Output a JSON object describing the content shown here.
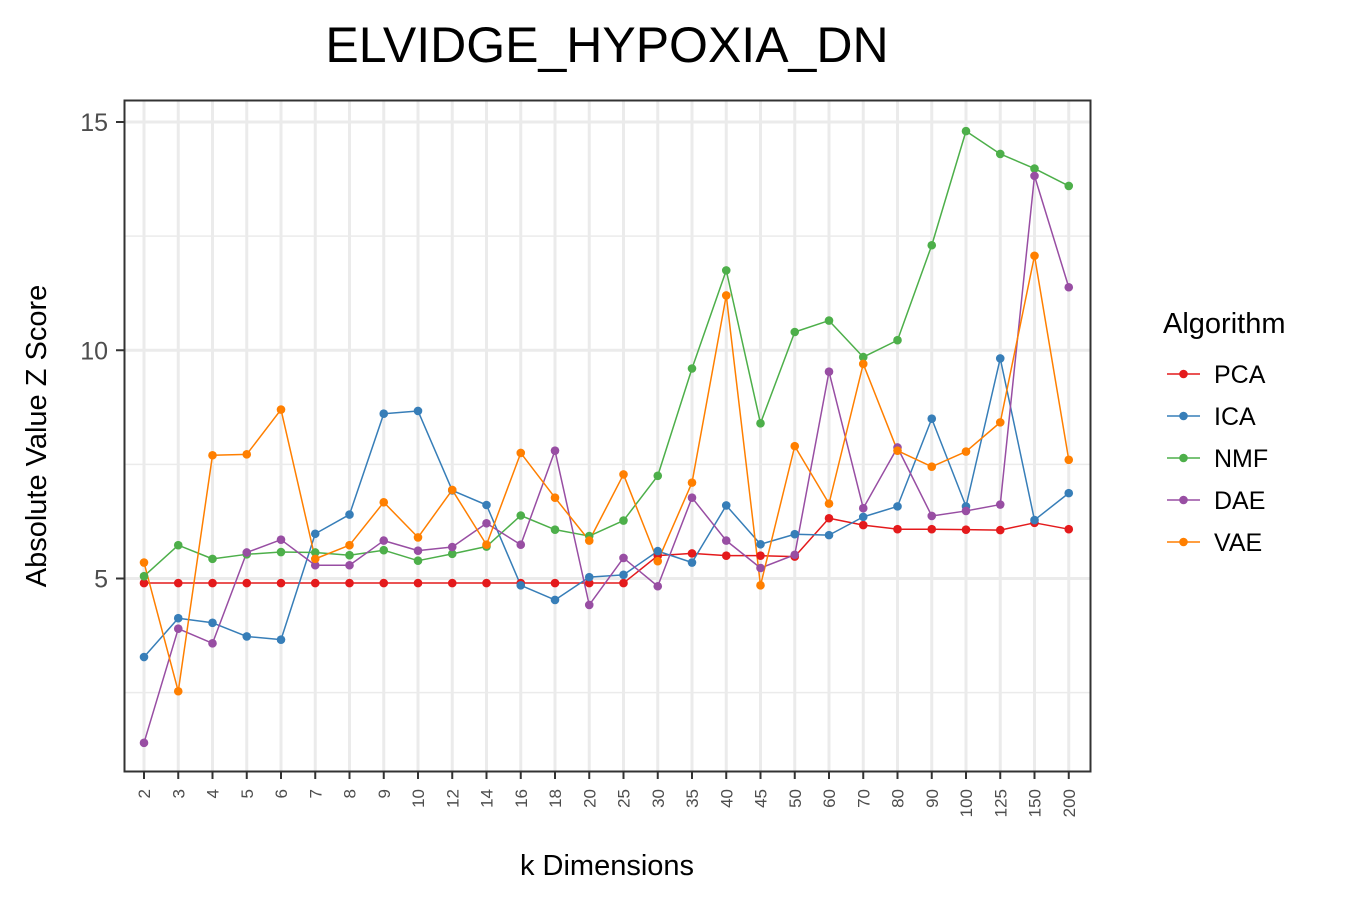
{
  "chart_data": {
    "type": "line",
    "title": "ELVIDGE_HYPOXIA_DN",
    "xlabel": "k Dimensions",
    "ylabel": "Absolute Value Z Score",
    "categories": [
      "2",
      "3",
      "4",
      "5",
      "6",
      "7",
      "8",
      "9",
      "10",
      "12",
      "14",
      "16",
      "18",
      "20",
      "25",
      "30",
      "35",
      "40",
      "45",
      "50",
      "60",
      "70",
      "80",
      "90",
      "100",
      "125",
      "150",
      "200"
    ],
    "y_ticks": [
      5,
      10,
      15
    ],
    "ylim": [
      1.1,
      15.5
    ],
    "grid": true,
    "legend_title": "Algorithm",
    "legend_position": "right",
    "series": [
      {
        "name": "PCA",
        "color": "#e41a1c",
        "values": [
          4.9,
          4.9,
          4.9,
          4.9,
          4.9,
          4.9,
          4.9,
          4.9,
          4.9,
          4.9,
          4.9,
          4.9,
          4.9,
          4.9,
          4.9,
          5.5,
          5.55,
          5.5,
          5.5,
          5.48,
          6.32,
          6.17,
          6.08,
          6.08,
          6.07,
          6.06,
          6.22,
          6.08
        ]
      },
      {
        "name": "ICA",
        "color": "#377eb8",
        "values": [
          3.28,
          4.13,
          4.03,
          3.73,
          3.66,
          5.98,
          6.4,
          8.61,
          8.67,
          6.93,
          6.61,
          4.85,
          4.53,
          5.03,
          5.08,
          5.6,
          5.35,
          6.6,
          5.75,
          5.97,
          5.95,
          6.35,
          6.58,
          8.5,
          6.58,
          9.82,
          6.28,
          6.87
        ]
      },
      {
        "name": "NMF",
        "color": "#4daf4a",
        "values": [
          5.05,
          5.73,
          5.43,
          5.53,
          5.58,
          5.57,
          5.51,
          5.62,
          5.39,
          5.54,
          5.7,
          6.38,
          6.07,
          5.93,
          6.27,
          7.25,
          9.6,
          11.75,
          8.4,
          10.4,
          10.65,
          9.85,
          10.22,
          12.3,
          14.8,
          14.3,
          13.98,
          13.6
        ]
      },
      {
        "name": "DAE",
        "color": "#984ea3",
        "values": [
          1.4,
          3.9,
          3.58,
          5.57,
          5.85,
          5.29,
          5.29,
          5.83,
          5.61,
          5.69,
          6.21,
          5.74,
          7.8,
          4.42,
          5.45,
          4.83,
          6.77,
          5.83,
          5.23,
          5.52,
          9.53,
          6.54,
          7.87,
          6.37,
          6.48,
          6.62,
          13.82,
          11.38
        ]
      },
      {
        "name": "VAE",
        "color": "#ff7f00",
        "values": [
          5.35,
          2.53,
          7.7,
          7.72,
          8.7,
          5.43,
          5.73,
          6.67,
          5.9,
          6.94,
          5.74,
          7.75,
          6.77,
          5.83,
          7.28,
          5.38,
          7.1,
          11.2,
          4.85,
          7.9,
          6.64,
          9.7,
          7.8,
          7.45,
          7.78,
          8.42,
          12.07,
          7.6
        ]
      }
    ]
  }
}
